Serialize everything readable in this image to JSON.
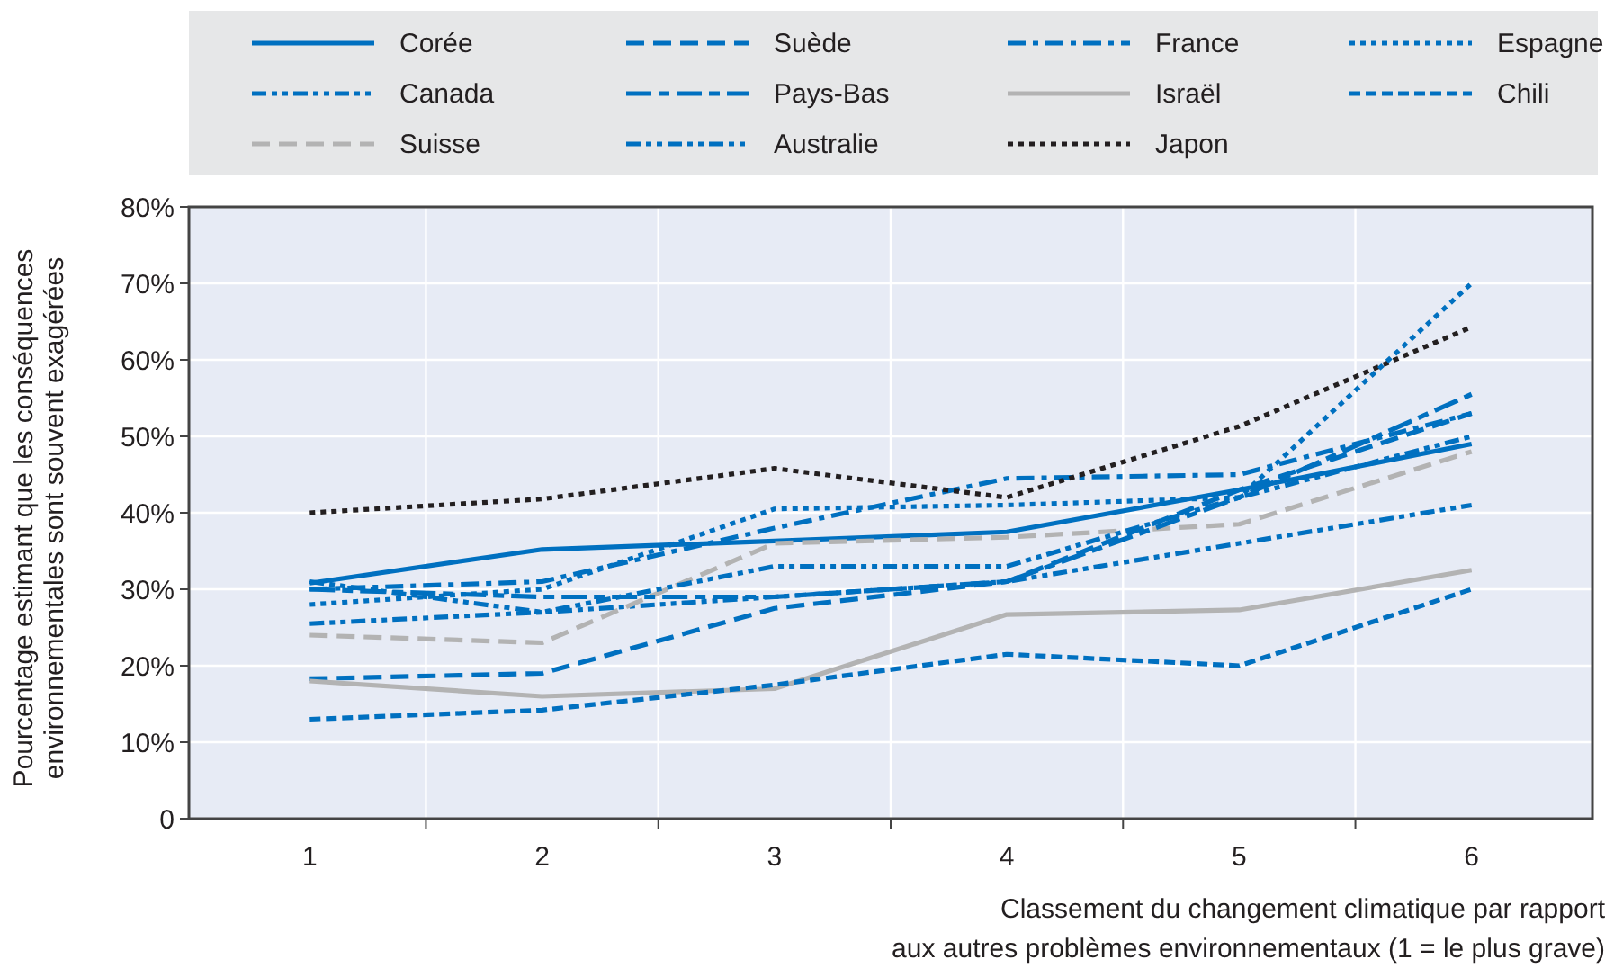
{
  "chart_data": {
    "type": "line",
    "xlabel": "Classement du changement climatique par rapport\naux autres problèmes environnementaux (1 = le plus grave)",
    "ylabel": "Pourcentage estimant que les conséquences\nenvironnementales sont souvent exagérées",
    "categories": [
      "1",
      "2",
      "3",
      "4",
      "5",
      "6"
    ],
    "ylim": [
      0,
      80
    ],
    "yticks": [
      {
        "value": 0,
        "label": "0"
      },
      {
        "value": 10,
        "label": "10%"
      },
      {
        "value": 20,
        "label": "20%"
      },
      {
        "value": 30,
        "label": "30%"
      },
      {
        "value": 40,
        "label": "40%"
      },
      {
        "value": 50,
        "label": "50%"
      },
      {
        "value": 60,
        "label": "60%"
      },
      {
        "value": 70,
        "label": "70%"
      },
      {
        "value": 80,
        "label": "80%"
      }
    ],
    "grid": true,
    "legend": "top",
    "series": [
      {
        "name": "Corée",
        "color": "#0070c0",
        "line_style": "solid",
        "values": [
          30.8,
          35.2,
          36.3,
          37.5,
          43,
          49
        ]
      },
      {
        "name": "Canada",
        "color": "#0070c0",
        "line_style": "dashdotdot",
        "values": [
          25.5,
          27,
          29,
          31,
          36,
          41
        ]
      },
      {
        "name": "Suisse",
        "color": "#b3b3b3",
        "line_style": "dashed",
        "values": [
          24,
          23,
          36,
          36.8,
          38.5,
          48
        ]
      },
      {
        "name": "Suède",
        "color": "#0070c0",
        "line_style": "dashed",
        "values": [
          18.3,
          19,
          27.5,
          31,
          43,
          53
        ]
      },
      {
        "name": "Pays-Bas",
        "color": "#0070c0",
        "line_style": "longdash",
        "values": [
          30,
          29,
          29,
          31,
          42,
          55.5
        ]
      },
      {
        "name": "Australie",
        "color": "#0070c0",
        "line_style": "dashdotdot",
        "values": [
          31,
          27,
          33,
          33,
          42,
          50
        ]
      },
      {
        "name": "France",
        "color": "#0070c0",
        "line_style": "dashdot",
        "values": [
          30,
          31,
          38,
          44.5,
          45,
          53
        ]
      },
      {
        "name": "Israël",
        "color": "#b3b3b3",
        "line_style": "solid",
        "values": [
          18,
          16,
          17,
          26.7,
          27.3,
          32.5
        ]
      },
      {
        "name": "Japon",
        "color": "#231f20",
        "line_style": "dotted",
        "values": [
          40,
          41.8,
          45.8,
          42,
          51.3,
          64.3
        ]
      },
      {
        "name": "Espagne",
        "color": "#0070c0",
        "line_style": "dotted",
        "values": [
          28,
          30,
          40.5,
          41,
          42,
          70
        ]
      },
      {
        "name": "Chili",
        "color": "#0070c0",
        "line_style": "shortdash",
        "values": [
          13,
          14.2,
          17.5,
          21.5,
          20,
          30
        ]
      }
    ]
  }
}
